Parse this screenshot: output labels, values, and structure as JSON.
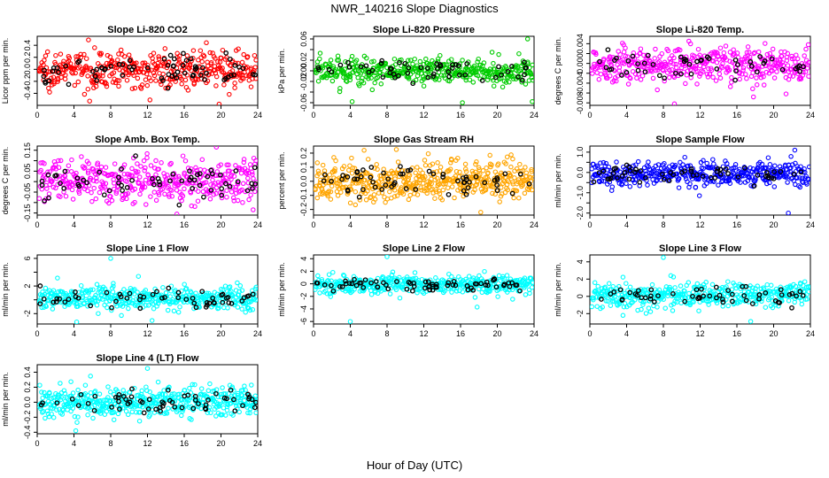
{
  "figure": {
    "title": "NWR_140216  Slope Diagnostics",
    "xlabel": "Hour of Day (UTC)"
  },
  "chart_data": [
    {
      "type": "scatter",
      "title": "Slope Li-820 CO2",
      "xlabel": "",
      "ylabel": "Licor ppm per min.",
      "xlim": [
        0,
        24
      ],
      "ylim": [
        -0.6,
        0.55
      ],
      "xticks": [
        0,
        4,
        8,
        12,
        16,
        20,
        24
      ],
      "yticks": [
        -0.4,
        -0.2,
        0.0,
        0.2,
        0.4
      ],
      "ytick_labels": [
        "-0.4",
        "-0.2",
        "0.0",
        "0.2",
        "0.4"
      ],
      "grid": false,
      "color": "#ff0000",
      "spread": 0.15,
      "outliers": [
        [
          19.8,
          -0.58
        ]
      ],
      "n_points": 420,
      "n_black": 70
    },
    {
      "type": "scatter",
      "title": "Slope Li-820 Pressure",
      "xlabel": "",
      "ylabel": "kPa per min.",
      "xlim": [
        0,
        24
      ],
      "ylim": [
        -0.065,
        0.065
      ],
      "xticks": [
        0,
        4,
        8,
        12,
        16,
        20,
        24
      ],
      "yticks": [
        -0.06,
        -0.04,
        -0.02,
        0.0,
        0.02,
        0.04,
        0.06
      ],
      "ytick_labels": [
        "-0.06",
        "",
        "-0.02",
        "0.00",
        "0.02",
        "",
        "0.06"
      ],
      "grid": false,
      "color": "#00cc00",
      "spread": 0.013,
      "outliers": [
        [
          4.2,
          -0.058
        ],
        [
          16.2,
          -0.06
        ],
        [
          23.8,
          -0.058
        ],
        [
          23.3,
          0.06
        ]
      ],
      "n_points": 420,
      "n_black": 55
    },
    {
      "type": "scatter",
      "title": "Slope Li-820 Temp.",
      "xlabel": "",
      "ylabel": "degrees C per min.",
      "xlim": [
        0,
        24
      ],
      "ylim": [
        -0.0085,
        0.0055
      ],
      "xticks": [
        0,
        4,
        8,
        12,
        16,
        20,
        24
      ],
      "yticks": [
        -0.008,
        -0.006,
        -0.004,
        -0.002,
        0.0,
        0.002,
        0.004
      ],
      "ytick_labels": [
        "-0.008",
        "",
        "-0.004",
        "",
        "0.000",
        "",
        "0.004"
      ],
      "grid": false,
      "color": "#ff00ff",
      "spread": 0.0018,
      "outliers": [
        [
          9.2,
          -0.0082
        ],
        [
          17.8,
          -0.0068
        ]
      ],
      "n_points": 420,
      "n_black": 50
    },
    {
      "type": "scatter",
      "title": "Slope Amb. Box Temp.",
      "xlabel": "",
      "ylabel": "degrees C per min.",
      "xlim": [
        0,
        24
      ],
      "ylim": [
        -0.16,
        0.17
      ],
      "xticks": [
        0,
        4,
        8,
        12,
        16,
        20,
        24
      ],
      "yticks": [
        -0.15,
        -0.1,
        -0.05,
        0.0,
        0.05,
        0.1,
        0.15
      ],
      "ytick_labels": [
        "-0.15",
        "",
        "-0.05",
        "",
        "0.05",
        "",
        "0.15"
      ],
      "grid": false,
      "color": "#ff00ff",
      "spread": 0.05,
      "outliers": [
        [
          15.2,
          -0.155
        ],
        [
          19.5,
          0.165
        ],
        [
          23.8,
          0.1
        ]
      ],
      "n_points": 420,
      "n_black": 60
    },
    {
      "type": "scatter",
      "title": "Slope Gas Stream RH",
      "xlabel": "",
      "ylabel": "percent per min.",
      "xlim": [
        0,
        24
      ],
      "ylim": [
        -0.24,
        0.25
      ],
      "xticks": [
        0,
        4,
        8,
        12,
        16,
        20,
        24
      ],
      "yticks": [
        -0.2,
        -0.1,
        0.0,
        0.1,
        0.2
      ],
      "ytick_labels": [
        "-0.2",
        "-0.1",
        "0.0",
        "0.1",
        "0.2"
      ],
      "grid": false,
      "color": "#ffa500",
      "spread": 0.07,
      "outliers": [
        [
          18.2,
          -0.22
        ],
        [
          5.5,
          0.22
        ]
      ],
      "n_points": 480,
      "n_black": 60
    },
    {
      "type": "scatter",
      "title": "Slope Sample Flow",
      "xlabel": "",
      "ylabel": "ml/min per min.",
      "xlim": [
        0,
        24
      ],
      "ylim": [
        -2.1,
        1.3
      ],
      "xticks": [
        0,
        4,
        8,
        12,
        16,
        20,
        24
      ],
      "yticks": [
        -2.0,
        -1.5,
        -1.0,
        -0.5,
        0.0,
        0.5,
        1.0
      ],
      "ytick_labels": [
        "-2.0",
        "",
        "-1.0",
        "",
        "0.0",
        "",
        "1.0"
      ],
      "grid": false,
      "color": "#0000ff",
      "spread": 0.3,
      "outliers": [
        [
          21.6,
          -2.0
        ],
        [
          22.3,
          1.1
        ]
      ],
      "n_points": 420,
      "n_black": 55
    },
    {
      "type": "scatter",
      "title": "Slope Line 1 Flow",
      "xlabel": "",
      "ylabel": "ml/min per min.",
      "xlim": [
        0,
        24
      ],
      "ylim": [
        -3.5,
        6.5
      ],
      "xticks": [
        0,
        4,
        8,
        12,
        16,
        20,
        24
      ],
      "yticks": [
        -2,
        0,
        2,
        4,
        6
      ],
      "ytick_labels": [
        "-2",
        "",
        "2",
        "",
        "6"
      ],
      "grid": false,
      "color": "#00ffff",
      "spread": 0.8,
      "outliers": [
        [
          8.0,
          6.0
        ],
        [
          12.5,
          -3.0
        ],
        [
          4.3,
          -3.2
        ]
      ],
      "n_points": 420,
      "n_black": 55
    },
    {
      "type": "scatter",
      "title": "Slope Line 2 Flow",
      "xlabel": "",
      "ylabel": "ml/min per min.",
      "xlim": [
        0,
        24
      ],
      "ylim": [
        -6.4,
        4.6
      ],
      "xticks": [
        0,
        4,
        8,
        12,
        16,
        20,
        24
      ],
      "yticks": [
        -6,
        -4,
        -2,
        0,
        2,
        4
      ],
      "ytick_labels": [
        "-6",
        "-4",
        "-2",
        "0",
        "2",
        "4"
      ],
      "grid": false,
      "color": "#00ffff",
      "spread": 0.7,
      "outliers": [
        [
          8.0,
          4.3
        ],
        [
          4.0,
          -6.0
        ],
        [
          17.8,
          -3.7
        ]
      ],
      "n_points": 420,
      "n_black": 70
    },
    {
      "type": "scatter",
      "title": "Slope Line 3 Flow",
      "xlabel": "",
      "ylabel": "ml/min per min.",
      "xlim": [
        0,
        24
      ],
      "ylim": [
        -3.2,
        4.8
      ],
      "xticks": [
        0,
        4,
        8,
        12,
        16,
        20,
        24
      ],
      "yticks": [
        -2,
        0,
        2,
        4
      ],
      "ytick_labels": [
        "-2",
        "0",
        "2",
        "4"
      ],
      "grid": false,
      "color": "#00ffff",
      "spread": 0.75,
      "outliers": [
        [
          8.0,
          4.5
        ],
        [
          17.5,
          -2.9
        ]
      ],
      "n_points": 420,
      "n_black": 55
    },
    {
      "type": "scatter",
      "title": "Slope Line 4 (LT) Flow",
      "xlabel": "",
      "ylabel": "ml/min per min.",
      "xlim": [
        0,
        24
      ],
      "ylim": [
        -0.42,
        0.5
      ],
      "xticks": [
        0,
        4,
        8,
        12,
        16,
        20,
        24
      ],
      "yticks": [
        -0.4,
        -0.2,
        0.0,
        0.2,
        0.4
      ],
      "ytick_labels": [
        "-0.4",
        "-0.2",
        "0.0",
        "0.2",
        "0.4"
      ],
      "grid": false,
      "color": "#00ffff",
      "spread": 0.1,
      "outliers": [
        [
          12.0,
          0.45
        ],
        [
          4.2,
          -0.38
        ]
      ],
      "n_points": 480,
      "n_black": 60
    }
  ]
}
